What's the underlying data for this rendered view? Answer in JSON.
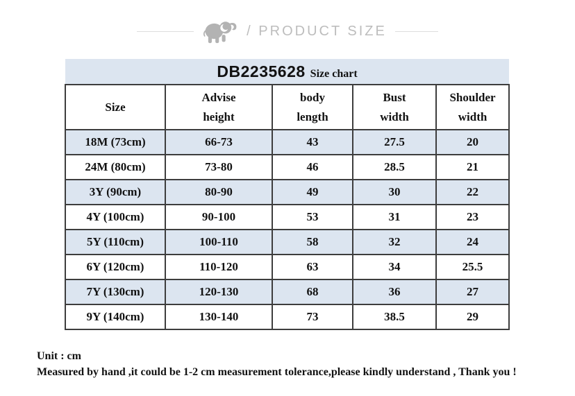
{
  "banner": {
    "icon": "elephant-icon",
    "label": "/ PRODUCT SIZE"
  },
  "size_chart": {
    "title_code": "DB2235628",
    "title_label": "Size chart",
    "columns": [
      "Size",
      "Advise\nheight",
      "body\nlength",
      "Bust\nwidth",
      "Shoulder\nwidth"
    ],
    "rows": [
      {
        "cells": [
          "18M (73cm)",
          "66-73",
          "43",
          "27.5",
          "20"
        ]
      },
      {
        "cells": [
          "24M (80cm)",
          "73-80",
          "46",
          "28.5",
          "21"
        ]
      },
      {
        "cells": [
          "3Y (90cm)",
          "80-90",
          "49",
          "30",
          "22"
        ]
      },
      {
        "cells": [
          "4Y (100cm)",
          "90-100",
          "53",
          "31",
          "23"
        ]
      },
      {
        "cells": [
          "5Y (110cm)",
          "100-110",
          "58",
          "32",
          "24"
        ]
      },
      {
        "cells": [
          "6Y (120cm)",
          "110-120",
          "63",
          "34",
          "25.5"
        ]
      },
      {
        "cells": [
          "7Y (130cm)",
          "120-130",
          "68",
          "36",
          "27"
        ]
      },
      {
        "cells": [
          "9Y (140cm)",
          "130-140",
          "73",
          "38.5",
          "29"
        ]
      }
    ]
  },
  "footer": {
    "unit_line": "Unit : cm",
    "tolerance_line": "Measured by hand ,it could be 1-2 cm measurement tolerance,please kindly understand , Thank you !"
  },
  "colors": {
    "row_stripe": "#dce5f0",
    "table_border": "#3d3d3d",
    "banner_text": "#bdbdbd",
    "icon_gray": "#b3b3b3"
  }
}
